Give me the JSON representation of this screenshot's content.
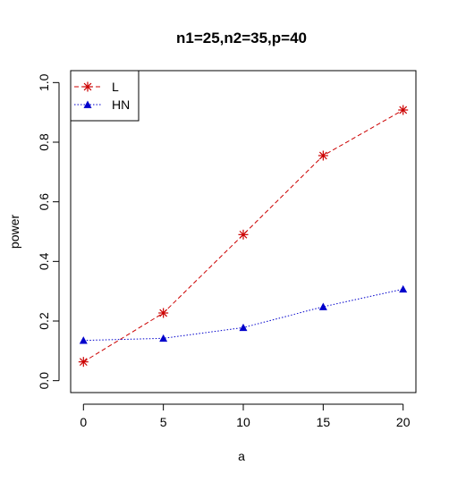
{
  "chart_data": {
    "type": "line",
    "title": "n1=25,n2=35,p=40",
    "xlabel": "a",
    "ylabel": "power",
    "x": [
      0,
      5,
      10,
      15,
      20
    ],
    "xlim": [
      -0.8,
      20.8
    ],
    "ylim": [
      -0.04,
      1.04
    ],
    "xticks": [
      "0",
      "5",
      "10",
      "15",
      "20"
    ],
    "yticks": [
      "0.0",
      "0.2",
      "0.4",
      "0.6",
      "0.8",
      "1.0"
    ],
    "legend_position": "top-left",
    "grid": false,
    "series": [
      {
        "name": "L",
        "values": [
          0.063,
          0.227,
          0.49,
          0.755,
          0.908
        ],
        "color": "#cc0000",
        "marker": "asterisk",
        "line": "dashed"
      },
      {
        "name": "HN",
        "values": [
          0.135,
          0.142,
          0.178,
          0.248,
          0.307
        ],
        "color": "#0000cc",
        "marker": "triangle",
        "line": "dotted"
      }
    ]
  }
}
